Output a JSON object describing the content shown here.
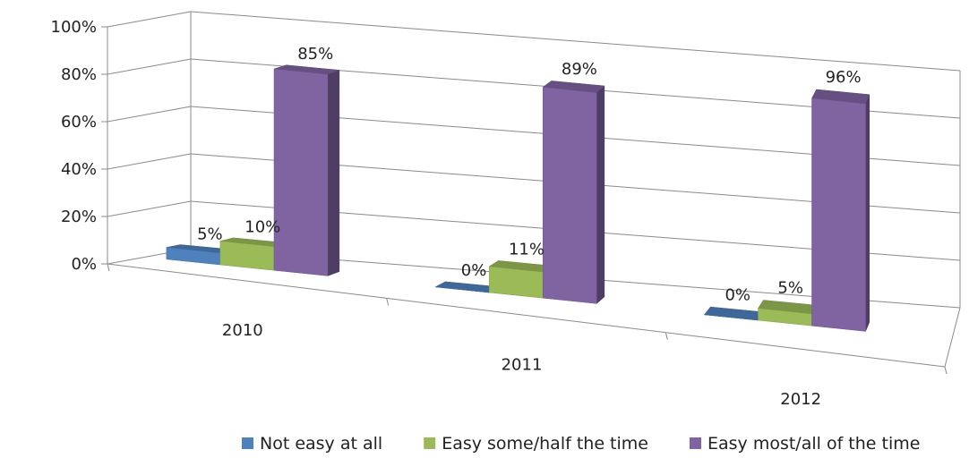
{
  "chart_data": {
    "type": "bar",
    "title": "",
    "xlabel": "",
    "ylabel": "",
    "categories": [
      "2010",
      "2011",
      "2012"
    ],
    "series": [
      {
        "name": "Not easy at all",
        "values": [
          5,
          0,
          0
        ],
        "labels": [
          "5%",
          "0%",
          "0%"
        ]
      },
      {
        "name": "Easy some/half the time",
        "values": [
          10,
          11,
          5
        ],
        "labels": [
          "10%",
          "11%",
          "5%"
        ]
      },
      {
        "name": "Easy most/all of the time",
        "values": [
          85,
          89,
          96
        ],
        "labels": [
          "85%",
          "89%",
          "96%"
        ]
      }
    ],
    "y_ticks": [
      "0%",
      "20%",
      "40%",
      "60%",
      "80%",
      "100%"
    ],
    "ylim": [
      0,
      100
    ],
    "grid": true,
    "legend_position": "bottom",
    "style": "3d-clustered-column",
    "colors": [
      "#4f81bd",
      "#9bbb59",
      "#8064a2"
    ]
  }
}
